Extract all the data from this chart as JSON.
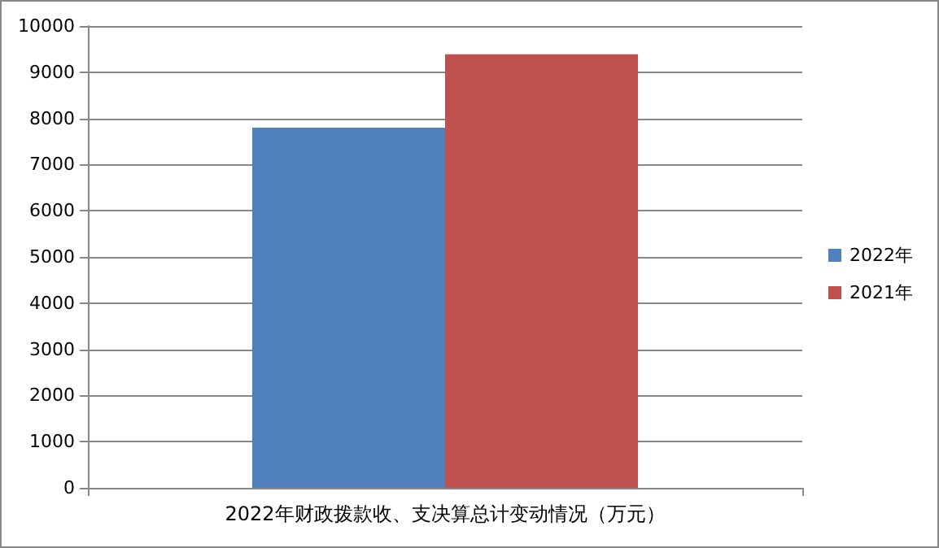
{
  "chart_data": {
    "type": "bar",
    "categories": [
      "2022年财政拨款收、支决算总计变动情况（万元）"
    ],
    "series": [
      {
        "name": "2022年",
        "color": "#4f81bd",
        "values": [
          7800
        ]
      },
      {
        "name": "2021年",
        "color": "#c0504d",
        "values": [
          9390
        ]
      }
    ],
    "ylim": [
      0,
      10000
    ],
    "yticks": [
      0,
      1000,
      2000,
      3000,
      4000,
      5000,
      6000,
      7000,
      8000,
      9000,
      10000
    ],
    "grid": "y",
    "legend": "right"
  }
}
